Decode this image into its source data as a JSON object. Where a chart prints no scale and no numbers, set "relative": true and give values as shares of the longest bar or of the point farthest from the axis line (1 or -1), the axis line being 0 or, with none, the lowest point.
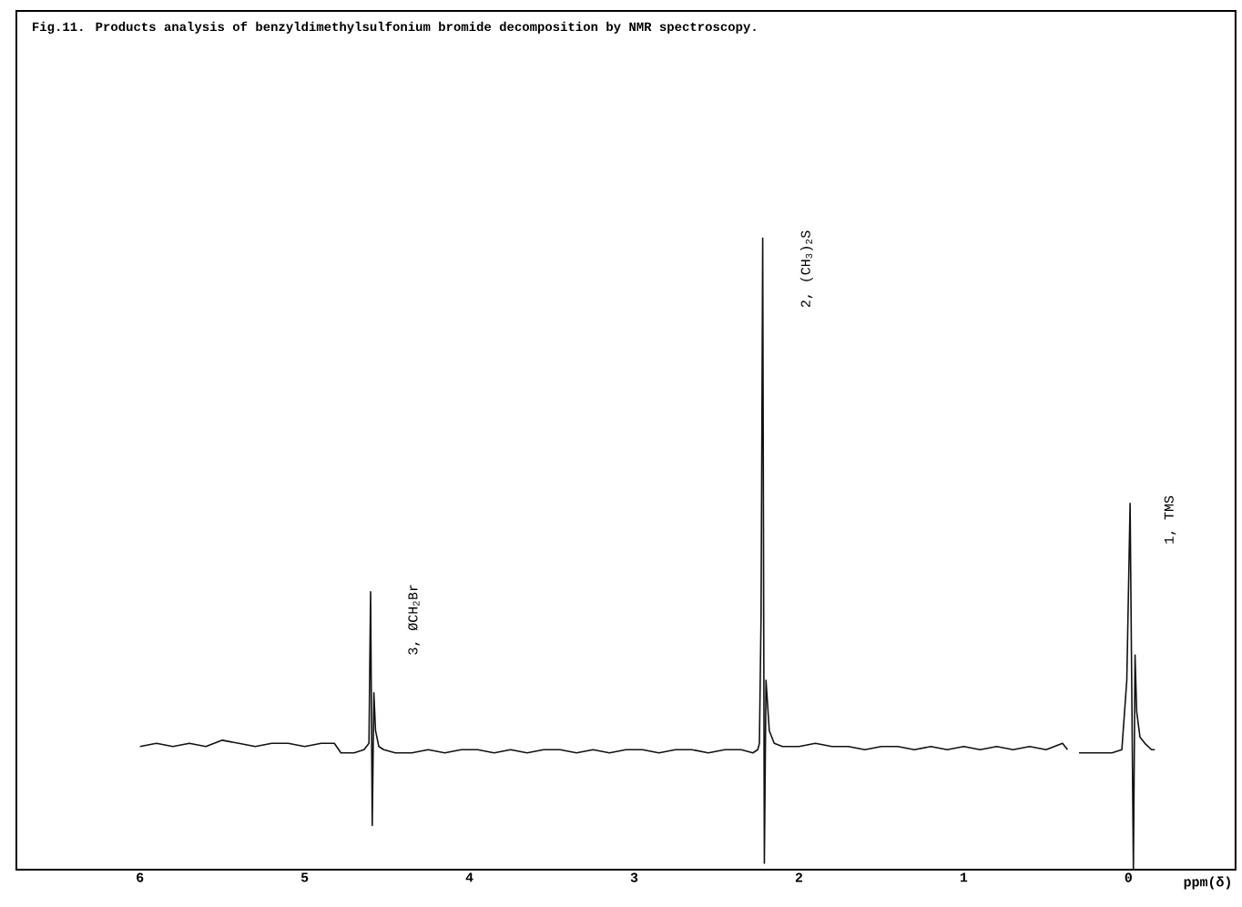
{
  "chart_data": {
    "type": "line",
    "relative": true,
    "title": "Fig.11.  Products analysis of benzyldimethylsulfonium bromide decomposition by NMR spectroscopy.",
    "xlabel": "ppm(δ)",
    "xlim": [
      6.75,
      -0.65
    ],
    "xticks": [
      6,
      5,
      4,
      3,
      2,
      1,
      0
    ],
    "series": [
      {
        "color": "#111111",
        "x": [
          6.0,
          5.9,
          5.8,
          5.7,
          5.6,
          5.5,
          5.4,
          5.3,
          5.2,
          5.1,
          5.0,
          4.9,
          4.82,
          4.78,
          4.7,
          4.64,
          4.61,
          4.6,
          4.59,
          4.58,
          4.57,
          4.55,
          4.52,
          4.45,
          4.35,
          4.25,
          4.15,
          4.05,
          3.95,
          3.85,
          3.75,
          3.65,
          3.55,
          3.45,
          3.35,
          3.25,
          3.15,
          3.05,
          2.95,
          2.85,
          2.75,
          2.65,
          2.55,
          2.45,
          2.35,
          2.28,
          2.25,
          2.24,
          2.23,
          2.22,
          2.21,
          2.2,
          2.18,
          2.15,
          2.1,
          2.0,
          1.9,
          1.8,
          1.7,
          1.6,
          1.5,
          1.4,
          1.3,
          1.2,
          1.1,
          1.0,
          0.9,
          0.8,
          0.7,
          0.6,
          0.5,
          0.4,
          0.37,
          0.33,
          0.3,
          0.2,
          0.1,
          0.04,
          0.01,
          -0.01,
          -0.03,
          -0.04,
          -0.05,
          -0.07,
          -0.1,
          -0.14,
          -0.16
        ],
        "values": [
          0.195,
          0.2,
          0.195,
          0.2,
          0.195,
          0.205,
          0.2,
          0.195,
          0.2,
          0.2,
          0.195,
          0.2,
          0.2,
          0.185,
          0.185,
          0.19,
          0.2,
          0.44,
          0.07,
          0.28,
          0.22,
          0.195,
          0.19,
          0.185,
          0.185,
          0.19,
          0.185,
          0.19,
          0.19,
          0.185,
          0.19,
          0.185,
          0.19,
          0.19,
          0.185,
          0.19,
          0.185,
          0.19,
          0.19,
          0.185,
          0.19,
          0.19,
          0.185,
          0.19,
          0.19,
          0.185,
          0.19,
          0.2,
          0.4,
          1.0,
          0.01,
          0.3,
          0.22,
          0.2,
          0.195,
          0.195,
          0.2,
          0.195,
          0.195,
          0.19,
          0.195,
          0.195,
          0.19,
          0.195,
          0.19,
          0.195,
          0.19,
          0.195,
          0.19,
          0.195,
          0.19,
          0.2,
          0.19,
          null,
          0.185,
          0.185,
          0.185,
          0.19,
          0.3,
          0.58,
          0.0,
          0.34,
          0.25,
          0.21,
          0.2,
          0.19,
          0.19
        ]
      }
    ],
    "annotations": [
      {
        "text": "3, ØCH$_{2}$Br",
        "x": 4.6,
        "y": 0.44
      },
      {
        "text": "2, (CH$_{3}$)$_{2}$S",
        "x": 2.22,
        "y": 1.0
      },
      {
        "text": "1, TMS",
        "x": 0.01,
        "y": 0.58
      }
    ]
  }
}
